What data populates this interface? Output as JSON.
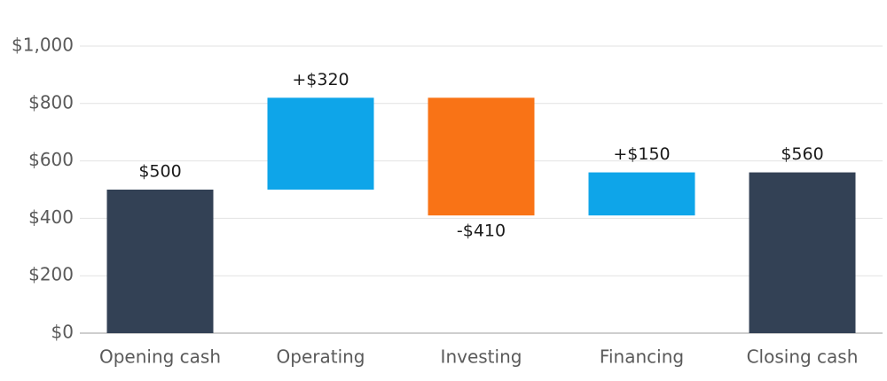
{
  "chart_data": {
    "type": "waterfall",
    "categories": [
      "Opening cash",
      "Operating",
      "Investing",
      "Financing",
      "Closing cash"
    ],
    "values": [
      500,
      320,
      -410,
      150,
      560
    ],
    "value_labels": [
      "$500",
      "+$320",
      "-$410",
      "+$150",
      "$560"
    ],
    "totals": [
      0,
      4
    ],
    "colors": {
      "total": "#334155",
      "increase": "#0ea5e9",
      "decrease": "#f97316"
    },
    "ylim": [
      0,
      1000
    ],
    "yticks": [
      {
        "value": 0,
        "label": "$0"
      },
      {
        "value": 200,
        "label": "$200"
      },
      {
        "value": 400,
        "label": "$400"
      },
      {
        "value": 600,
        "label": "$600"
      },
      {
        "value": 800,
        "label": "$800"
      },
      {
        "value": 1000,
        "label": "$1,000"
      }
    ],
    "grid": true
  }
}
